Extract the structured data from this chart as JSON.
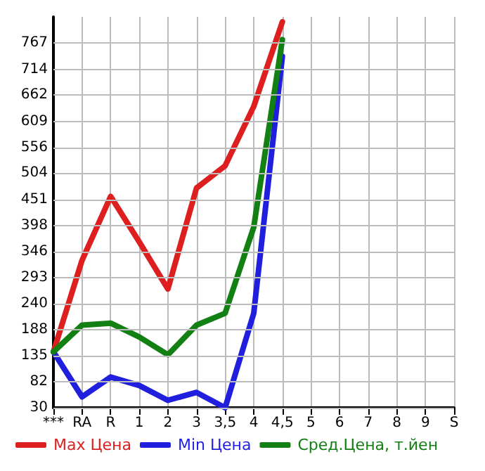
{
  "chart_data": {
    "type": "line",
    "categories": [
      "***",
      "RA",
      "R",
      "1",
      "2",
      "3",
      "3,5",
      "4",
      "4,5",
      "5",
      "6",
      "7",
      "8",
      "9",
      "S"
    ],
    "series": [
      {
        "name": "Max Цена",
        "color": "#dd1f1f",
        "values": [
          143,
          328,
          457,
          365,
          270,
          474,
          519,
          639,
          810,
          null,
          null,
          null,
          null,
          null,
          null
        ]
      },
      {
        "name": "Min Цена",
        "color": "#1f1fdd",
        "values": [
          143,
          52,
          92,
          75,
          45,
          61,
          30,
          221,
          740,
          null,
          null,
          null,
          null,
          null,
          null
        ]
      },
      {
        "name": "Сред.Цена, т.йен",
        "color": "#138013",
        "values": [
          143,
          197,
          201,
          173,
          137,
          197,
          221,
          395,
          774,
          null,
          null,
          null,
          null,
          null,
          null
        ]
      }
    ],
    "ylim": [
      30,
      820
    ],
    "yticks": [
      30,
      82,
      135,
      188,
      240,
      293,
      346,
      398,
      451,
      504,
      556,
      609,
      662,
      714,
      767
    ],
    "grid": true,
    "legend": "bottom",
    "marker": "none",
    "line_style": "solid"
  }
}
